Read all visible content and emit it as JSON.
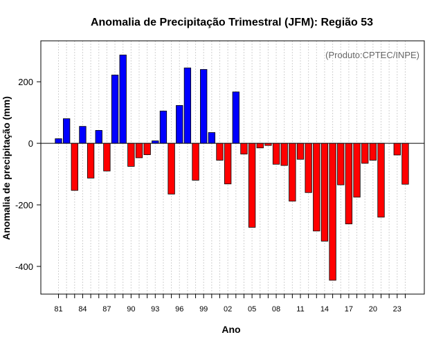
{
  "chart_data": {
    "type": "bar",
    "title": "Anomalia de Precipitação Trimestral (JFM): Região 53",
    "xlabel": "Ano",
    "ylabel": "Anomalia de precipitação (mm)",
    "annotation": "(Produto:CPTEC/INPE)",
    "ylim": [
      -490,
      333
    ],
    "yticks": [
      200,
      0,
      -200,
      -400
    ],
    "xtick_labels": [
      "81",
      "84",
      "87",
      "90",
      "93",
      "96",
      "99",
      "02",
      "05",
      "08",
      "11",
      "14",
      "17",
      "20",
      "23"
    ],
    "xtick_label_every": 3,
    "categories": [
      "1981",
      "1982",
      "1983",
      "1984",
      "1985",
      "1986",
      "1987",
      "1988",
      "1989",
      "1990",
      "1991",
      "1992",
      "1993",
      "1994",
      "1995",
      "1996",
      "1997",
      "1998",
      "1999",
      "2000",
      "2001",
      "2002",
      "2003",
      "2004",
      "2005",
      "2006",
      "2007",
      "2008",
      "2009",
      "2010",
      "2011",
      "2012",
      "2013",
      "2014",
      "2015",
      "2016",
      "2017",
      "2018",
      "2019",
      "2020",
      "2021",
      "2022",
      "2023",
      "2024"
    ],
    "values": [
      15,
      80,
      -153,
      55,
      -113,
      42,
      -90,
      222,
      287,
      -75,
      -47,
      -37,
      8,
      105,
      -165,
      123,
      245,
      -120,
      240,
      35,
      -55,
      -132,
      167,
      -35,
      -273,
      -15,
      -7,
      -68,
      -72,
      -188,
      -52,
      -160,
      -285,
      -318,
      -445,
      -135,
      -262,
      -175,
      -65,
      -55,
      -240,
      0,
      -38,
      -133
    ],
    "positive_color": "#0000FF",
    "negative_color": "#FF0000",
    "zero_line": true,
    "vertical_grid": "dotted"
  }
}
